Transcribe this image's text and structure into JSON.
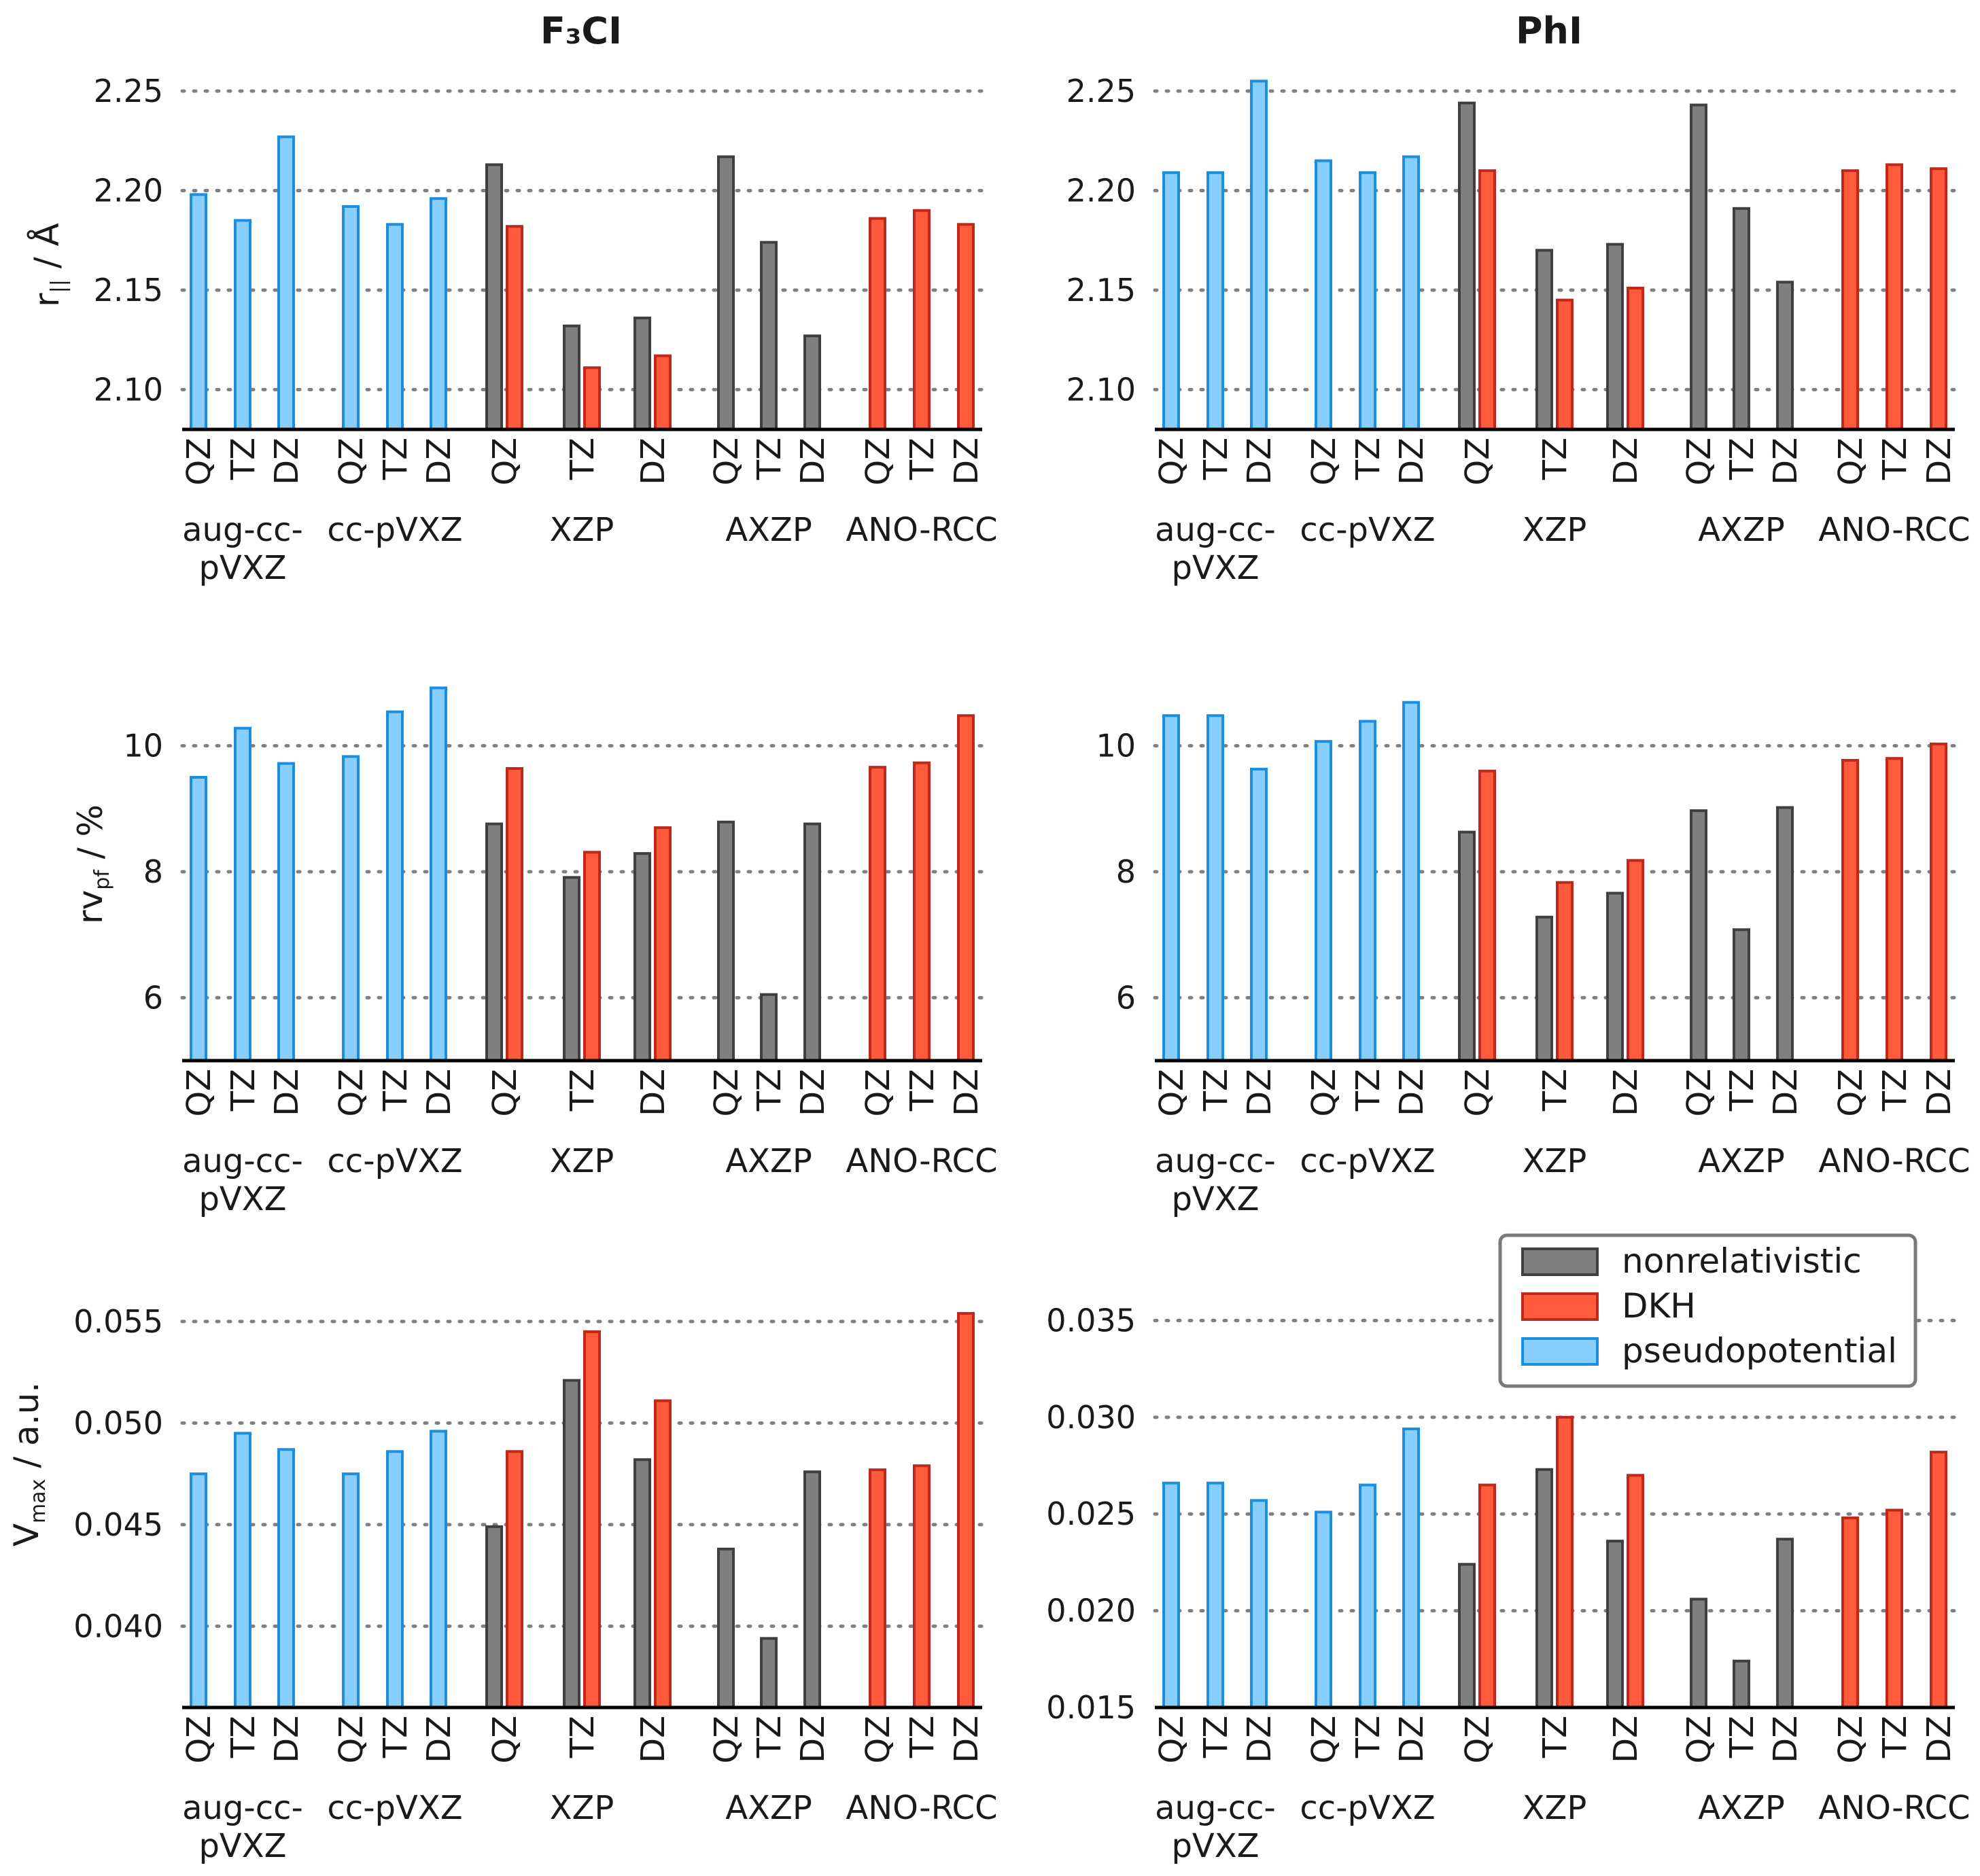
{
  "colors": {
    "nonrel": "#7f7f7f",
    "dkh": "#ff5a3c",
    "pp": "#87cefa"
  },
  "stroke_colors": {
    "nonrel": "#3f3f3f",
    "dkh": "#c0281a",
    "pp": "#1a8fe0"
  },
  "legend": {
    "nonrel": "nonrelativistic",
    "dkh": "DKH",
    "pp": "pseudopotential"
  },
  "groups": [
    "aug-cc-pVXZ",
    "cc-pVXZ",
    "XZP",
    "AXZP",
    "ANO-RCC"
  ],
  "group_display": [
    [
      "aug-cc-",
      "pVXZ"
    ],
    [
      "cc-pVXZ"
    ],
    [
      "XZP"
    ],
    [
      "AXZP"
    ],
    [
      "ANO-RCC"
    ]
  ],
  "categories": [
    "QZ",
    "TZ",
    "DZ",
    "QZ",
    "TZ",
    "DZ",
    "QZ",
    "TZ",
    "DZ",
    "QZ",
    "TZ",
    "DZ",
    "QZ",
    "TZ",
    "DZ"
  ],
  "columns": {
    "F3CI": "F₃CI",
    "PhI": "PhI"
  },
  "row_labels": {
    "r": {
      "base": "r",
      "sub": "||",
      "unit": " / Å"
    },
    "rv": {
      "base": "rv",
      "sub": "pf",
      "unit": " / %"
    },
    "v": {
      "base": "V",
      "sub": "max",
      "unit": " / a.u."
    }
  },
  "chart_data": [
    {
      "id": "f3ci_r",
      "type": "bar",
      "title": "F₃CI",
      "ylabel": "r|| / Å",
      "ylim": [
        2.08,
        2.25
      ],
      "yticks": [
        2.1,
        2.15,
        2.2,
        2.25
      ],
      "tick_labels": [
        "2.10",
        "2.15",
        "2.20",
        "2.25"
      ],
      "pseudopotential": [
        2.198,
        2.185,
        2.227,
        2.192,
        2.183,
        2.196
      ],
      "nonrelativistic": {
        "XZP": [
          2.213,
          2.132,
          2.136
        ],
        "AXZP": [
          2.217,
          2.174,
          2.127
        ]
      },
      "DKH": {
        "XZP": [
          2.182,
          2.111,
          2.117
        ],
        "ANO-RCC": [
          2.186,
          2.19,
          2.183
        ]
      }
    },
    {
      "id": "phi_r",
      "type": "bar",
      "title": "PhI",
      "ylabel": "r|| / Å",
      "ylim": [
        2.08,
        2.25
      ],
      "yticks": [
        2.1,
        2.15,
        2.2,
        2.25
      ],
      "tick_labels": [
        "2.10",
        "2.15",
        "2.20",
        "2.25"
      ],
      "pseudopotential": [
        2.209,
        2.209,
        2.255,
        2.215,
        2.209,
        2.217
      ],
      "nonrelativistic": {
        "XZP": [
          2.244,
          2.17,
          2.173
        ],
        "AXZP": [
          2.243,
          2.191,
          2.154
        ]
      },
      "DKH": {
        "XZP": [
          2.21,
          2.145,
          2.151
        ],
        "ANO-RCC": [
          2.21,
          2.213,
          2.211
        ]
      }
    },
    {
      "id": "f3ci_rv",
      "type": "bar",
      "title": "",
      "ylabel": "rvpf / %",
      "ylim": [
        5.0,
        11.0
      ],
      "yticks": [
        6,
        8,
        10
      ],
      "tick_labels": [
        "6",
        "8",
        "10"
      ],
      "pseudopotential": [
        9.5,
        10.28,
        9.72,
        9.83,
        10.54,
        10.92
      ],
      "nonrelativistic": {
        "XZP": [
          8.76,
          7.91,
          8.29
        ],
        "AXZP": [
          8.79,
          6.05,
          8.76
        ]
      },
      "DKH": {
        "XZP": [
          9.64,
          8.31,
          8.7
        ],
        "ANO-RCC": [
          9.66,
          9.73,
          10.48
        ]
      }
    },
    {
      "id": "phi_rv",
      "type": "bar",
      "title": "",
      "ylabel": "rvpf / %",
      "ylim": [
        5.0,
        11.0
      ],
      "yticks": [
        6,
        8,
        10
      ],
      "tick_labels": [
        "6",
        "8",
        "10"
      ],
      "pseudopotential": [
        10.48,
        10.48,
        9.63,
        10.07,
        10.39,
        10.69
      ],
      "nonrelativistic": {
        "XZP": [
          8.63,
          7.28,
          7.66
        ],
        "AXZP": [
          8.97,
          7.08,
          9.02
        ]
      },
      "DKH": {
        "XZP": [
          9.6,
          7.83,
          8.18
        ],
        "ANO-RCC": [
          9.77,
          9.8,
          10.03
        ]
      }
    },
    {
      "id": "f3ci_v",
      "type": "bar",
      "title": "",
      "ylabel": "Vmax / a.u.",
      "ylim": [
        0.036,
        0.056
      ],
      "yticks": [
        0.04,
        0.045,
        0.05,
        0.055
      ],
      "tick_labels": [
        "0.040",
        "0.045",
        "0.050",
        "0.055"
      ],
      "pseudopotential": [
        0.0475,
        0.0495,
        0.0487,
        0.0475,
        0.0486,
        0.0496
      ],
      "nonrelativistic": {
        "XZP": [
          0.0449,
          0.0521,
          0.0482
        ],
        "AXZP": [
          0.0438,
          0.0394,
          0.0476
        ]
      },
      "DKH": {
        "XZP": [
          0.0486,
          0.0545,
          0.0511
        ],
        "ANO-RCC": [
          0.0477,
          0.0479,
          0.0554
        ]
      }
    },
    {
      "id": "phi_v",
      "type": "bar",
      "title": "",
      "ylabel": "",
      "ylim": [
        0.015,
        0.036
      ],
      "yticks": [
        0.015,
        0.02,
        0.025,
        0.03,
        0.035
      ],
      "tick_labels": [
        "0.015",
        "0.020",
        "0.025",
        "0.030",
        "0.035"
      ],
      "pseudopotential": [
        0.0266,
        0.0266,
        0.0257,
        0.0251,
        0.0265,
        0.0294
      ],
      "nonrelativistic": {
        "XZP": [
          0.0224,
          0.0273,
          0.0236
        ],
        "AXZP": [
          0.0206,
          0.0174,
          0.0237
        ]
      },
      "DKH": {
        "XZP": [
          0.0265,
          0.03,
          0.027
        ],
        "ANO-RCC": [
          0.0248,
          0.0252,
          0.0282
        ]
      }
    }
  ]
}
